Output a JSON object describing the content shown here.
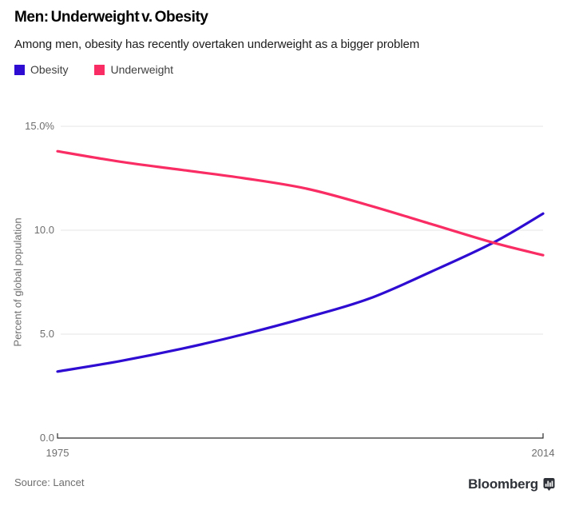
{
  "header": {
    "title": "Men: Underweight v. Obesity",
    "subtitle": "Among men, obesity has recently overtaken underweight as a bigger problem"
  },
  "legend": [
    {
      "label": "Obesity",
      "color": "#2e0cd1"
    },
    {
      "label": "Underweight",
      "color": "#f92d63"
    }
  ],
  "colors": {
    "obesity_line": "#2e0cd1",
    "underweight_line": "#f92d63",
    "gridline": "#e6e6e6",
    "axis": "#2b2b2b",
    "muted_text": "#6e6e6e"
  },
  "chart_data": {
    "type": "line",
    "title": "Men: Underweight v. Obesity",
    "subtitle": "Among men, obesity has recently overtaken underweight as a bigger problem",
    "xlabel": "",
    "ylabel": "Percent of global population",
    "x": [
      1975,
      1980,
      1985,
      1990,
      1995,
      2000,
      2005,
      2010,
      2014
    ],
    "series": [
      {
        "name": "Obesity",
        "color": "#2e0cd1",
        "values": [
          3.2,
          3.7,
          4.3,
          5.0,
          5.8,
          6.7,
          8.0,
          9.4,
          10.8
        ]
      },
      {
        "name": "Underweight",
        "color": "#f92d63",
        "values": [
          13.8,
          13.3,
          12.9,
          12.5,
          12.0,
          11.2,
          10.3,
          9.4,
          8.8
        ]
      }
    ],
    "xlim": [
      1975,
      2014
    ],
    "ylim": [
      0,
      15
    ],
    "y_ticks": [
      {
        "value": 15,
        "label": "15.0%"
      },
      {
        "value": 10,
        "label": "10.0"
      },
      {
        "value": 5,
        "label": "5.0"
      },
      {
        "value": 0,
        "label": "0.0"
      }
    ],
    "x_ticks": [
      {
        "value": 1975,
        "label": "1975"
      },
      {
        "value": 2014,
        "label": "2014"
      }
    ],
    "grid": "horizontal",
    "legend_position": "top-left",
    "annotations": []
  },
  "footer": {
    "source": "Source: Lancet",
    "brand": "Bloomberg",
    "brand_icon": "bloomberg-chart-bubble-icon"
  }
}
